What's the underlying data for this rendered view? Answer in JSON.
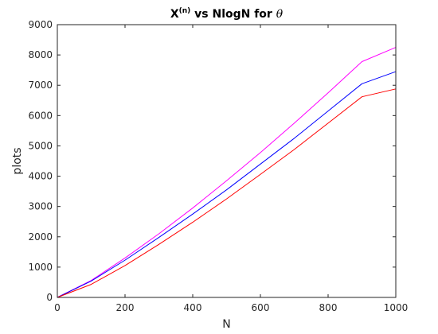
{
  "chart_data": {
    "type": "line",
    "title": {
      "base": "X",
      "superscript": "(n)",
      "rest": " vs NlogN for ",
      "symbol": "θ"
    },
    "xlabel": "N",
    "ylabel": "plots",
    "xlim": [
      0,
      1000
    ],
    "ylim": [
      0,
      9000
    ],
    "xticks": [
      0,
      200,
      400,
      600,
      800,
      1000
    ],
    "yticks": [
      0,
      1000,
      2000,
      3000,
      4000,
      5000,
      6000,
      7000,
      8000,
      9000
    ],
    "grid": false,
    "legend": "none",
    "x": [
      0,
      100,
      200,
      300,
      400,
      500,
      600,
      700,
      800,
      900,
      1000
    ],
    "series": [
      {
        "color": "#ff00ff",
        "values": [
          0,
          560,
          1300,
          2100,
          2950,
          3850,
          4780,
          5750,
          6750,
          7780,
          8250
        ]
      },
      {
        "color": "#0000ff",
        "values": [
          0,
          540,
          1230,
          1980,
          2750,
          3550,
          4400,
          5250,
          6150,
          7050,
          7450
        ]
      },
      {
        "color": "#ff0000",
        "values": [
          0,
          430,
          1050,
          1750,
          2480,
          3250,
          4060,
          4880,
          5750,
          6620,
          6880
        ]
      }
    ]
  }
}
